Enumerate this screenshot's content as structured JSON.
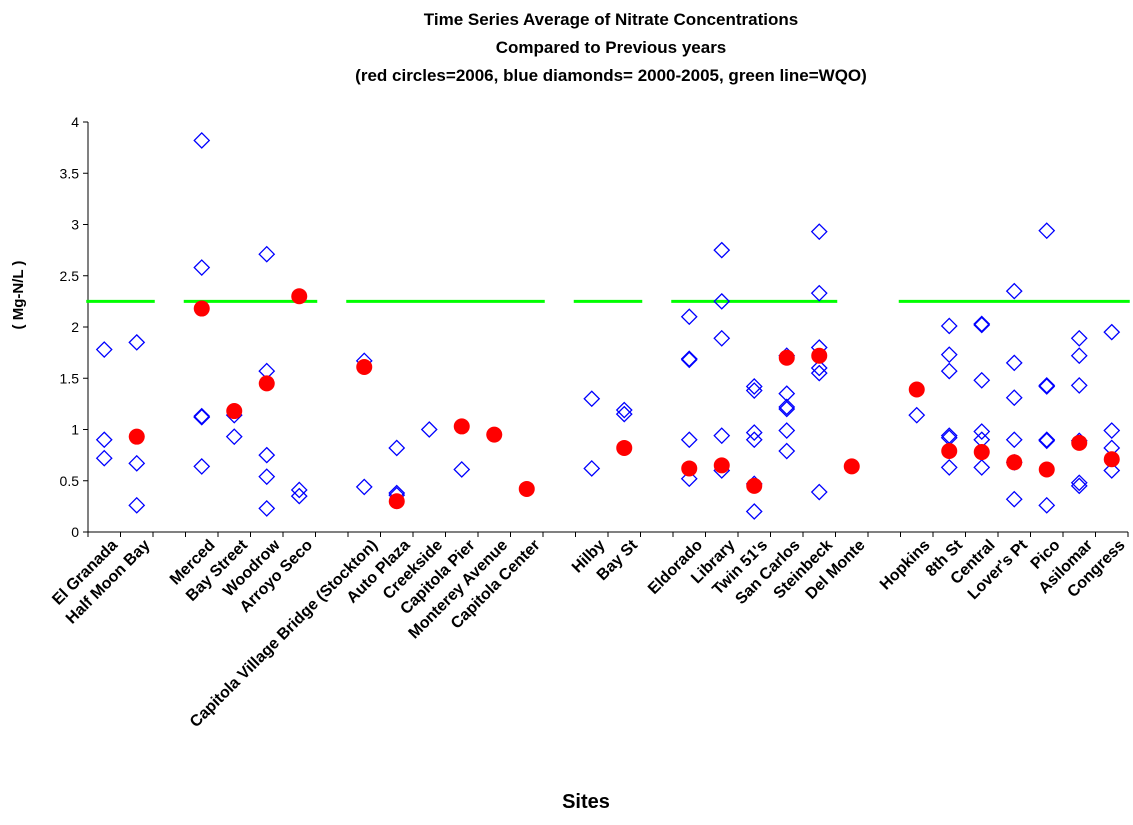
{
  "chart_data": {
    "type": "scatter",
    "title_lines": [
      "Time Series Average of Nitrate Concentrations",
      "Compared to Previous years",
      "(red circles=2006, blue diamonds= 2000-2005, green line=WQO)"
    ],
    "xlabel": "Sites",
    "ylabel": "( Mg-N/L )",
    "ylim": [
      0,
      4
    ],
    "yticks": [
      "0",
      "0.5",
      "1",
      "1.5",
      "2",
      "2.5",
      "3",
      "3.5",
      "4"
    ],
    "grid": false,
    "legend": "none",
    "colors": {
      "series_2006": "#ff0000",
      "series_prev": "#0000ff",
      "wqo": "#00ff00",
      "axis": "#000000"
    },
    "categories": [
      "El Granada",
      "Half Moon Bay",
      "",
      "Merced",
      "Bay Street",
      "Woodrow",
      "Arroyo Seco",
      "",
      "Capitola Village Bridge (Stockton)",
      "Auto Plaza",
      "Creekside",
      "Capitola Pier",
      "Monterey Avenue",
      "Capitola Center",
      "",
      "Hilby",
      "Bay St",
      "",
      "Eldorado",
      "Library",
      "Twin 51's",
      "San Carlos",
      "Steinbeck",
      "Del Monte",
      "",
      "Hopkins",
      "8th St",
      "Central",
      "Lover's Pt",
      "Pico",
      "Asilomar",
      "Congress"
    ],
    "series": [
      {
        "name": "2006",
        "marker": "circle",
        "points": [
          {
            "x": 1,
            "y": 0.93
          },
          {
            "x": 3,
            "y": 2.18
          },
          {
            "x": 4,
            "y": 1.18
          },
          {
            "x": 5,
            "y": 1.45
          },
          {
            "x": 6,
            "y": 2.3
          },
          {
            "x": 8,
            "y": 1.61
          },
          {
            "x": 9,
            "y": 0.3
          },
          {
            "x": 11,
            "y": 1.03
          },
          {
            "x": 12,
            "y": 0.95
          },
          {
            "x": 13,
            "y": 0.42
          },
          {
            "x": 16,
            "y": 0.82
          },
          {
            "x": 18,
            "y": 0.62
          },
          {
            "x": 19,
            "y": 0.65
          },
          {
            "x": 20,
            "y": 0.45
          },
          {
            "x": 21,
            "y": 1.7
          },
          {
            "x": 22,
            "y": 1.72
          },
          {
            "x": 23,
            "y": 0.64
          },
          {
            "x": 25,
            "y": 1.39
          },
          {
            "x": 26,
            "y": 0.79
          },
          {
            "x": 27,
            "y": 0.78
          },
          {
            "x": 28,
            "y": 0.68
          },
          {
            "x": 29,
            "y": 0.61
          },
          {
            "x": 30,
            "y": 0.87
          },
          {
            "x": 31,
            "y": 0.71
          }
        ]
      },
      {
        "name": "2000-2005",
        "marker": "diamond",
        "points": [
          {
            "x": 0,
            "y": 1.78
          },
          {
            "x": 0,
            "y": 0.9
          },
          {
            "x": 0,
            "y": 0.72
          },
          {
            "x": 1,
            "y": 1.85
          },
          {
            "x": 1,
            "y": 0.67
          },
          {
            "x": 1,
            "y": 0.26
          },
          {
            "x": 3,
            "y": 3.82
          },
          {
            "x": 3,
            "y": 2.58
          },
          {
            "x": 3,
            "y": 1.12
          },
          {
            "x": 3,
            "y": 1.13
          },
          {
            "x": 3,
            "y": 0.64
          },
          {
            "x": 4,
            "y": 1.14
          },
          {
            "x": 4,
            "y": 0.93
          },
          {
            "x": 5,
            "y": 2.71
          },
          {
            "x": 5,
            "y": 1.57
          },
          {
            "x": 5,
            "y": 0.75
          },
          {
            "x": 5,
            "y": 0.54
          },
          {
            "x": 5,
            "y": 0.23
          },
          {
            "x": 6,
            "y": 0.41
          },
          {
            "x": 6,
            "y": 0.35
          },
          {
            "x": 8,
            "y": 1.67
          },
          {
            "x": 8,
            "y": 0.44
          },
          {
            "x": 9,
            "y": 0.82
          },
          {
            "x": 9,
            "y": 0.38
          },
          {
            "x": 9,
            "y": 0.36
          },
          {
            "x": 10,
            "y": 1.0
          },
          {
            "x": 11,
            "y": 0.61
          },
          {
            "x": 15,
            "y": 1.3
          },
          {
            "x": 15,
            "y": 0.62
          },
          {
            "x": 16,
            "y": 1.19
          },
          {
            "x": 16,
            "y": 1.15
          },
          {
            "x": 18,
            "y": 2.1
          },
          {
            "x": 18,
            "y": 1.69
          },
          {
            "x": 18,
            "y": 1.68
          },
          {
            "x": 18,
            "y": 0.9
          },
          {
            "x": 18,
            "y": 0.52
          },
          {
            "x": 19,
            "y": 2.75
          },
          {
            "x": 19,
            "y": 2.25
          },
          {
            "x": 19,
            "y": 1.89
          },
          {
            "x": 19,
            "y": 0.94
          },
          {
            "x": 19,
            "y": 0.6
          },
          {
            "x": 20,
            "y": 1.42
          },
          {
            "x": 20,
            "y": 1.38
          },
          {
            "x": 20,
            "y": 0.97
          },
          {
            "x": 20,
            "y": 0.9
          },
          {
            "x": 20,
            "y": 0.47
          },
          {
            "x": 20,
            "y": 0.2
          },
          {
            "x": 21,
            "y": 1.72
          },
          {
            "x": 21,
            "y": 1.35
          },
          {
            "x": 21,
            "y": 1.22
          },
          {
            "x": 21,
            "y": 1.2
          },
          {
            "x": 21,
            "y": 0.99
          },
          {
            "x": 21,
            "y": 0.79
          },
          {
            "x": 22,
            "y": 2.93
          },
          {
            "x": 22,
            "y": 2.33
          },
          {
            "x": 22,
            "y": 1.8
          },
          {
            "x": 22,
            "y": 1.6
          },
          {
            "x": 22,
            "y": 1.55
          },
          {
            "x": 22,
            "y": 0.39
          },
          {
            "x": 25,
            "y": 1.14
          },
          {
            "x": 26,
            "y": 2.01
          },
          {
            "x": 26,
            "y": 1.73
          },
          {
            "x": 26,
            "y": 1.57
          },
          {
            "x": 26,
            "y": 0.94
          },
          {
            "x": 26,
            "y": 0.92
          },
          {
            "x": 26,
            "y": 0.63
          },
          {
            "x": 27,
            "y": 2.03
          },
          {
            "x": 27,
            "y": 2.02
          },
          {
            "x": 27,
            "y": 1.48
          },
          {
            "x": 27,
            "y": 0.98
          },
          {
            "x": 27,
            "y": 0.9
          },
          {
            "x": 27,
            "y": 0.63
          },
          {
            "x": 28,
            "y": 2.35
          },
          {
            "x": 28,
            "y": 1.65
          },
          {
            "x": 28,
            "y": 1.31
          },
          {
            "x": 28,
            "y": 0.9
          },
          {
            "x": 28,
            "y": 0.68
          },
          {
            "x": 28,
            "y": 0.32
          },
          {
            "x": 29,
            "y": 2.94
          },
          {
            "x": 29,
            "y": 1.43
          },
          {
            "x": 29,
            "y": 1.42
          },
          {
            "x": 29,
            "y": 0.9
          },
          {
            "x": 29,
            "y": 0.89
          },
          {
            "x": 29,
            "y": 0.26
          },
          {
            "x": 30,
            "y": 1.89
          },
          {
            "x": 30,
            "y": 1.72
          },
          {
            "x": 30,
            "y": 1.43
          },
          {
            "x": 30,
            "y": 0.89
          },
          {
            "x": 30,
            "y": 0.48
          },
          {
            "x": 30,
            "y": 0.45
          },
          {
            "x": 31,
            "y": 1.95
          },
          {
            "x": 31,
            "y": 0.99
          },
          {
            "x": 31,
            "y": 0.82
          },
          {
            "x": 31,
            "y": 0.6
          }
        ]
      },
      {
        "name": "WQO",
        "type": "line",
        "value": 2.25,
        "segments": [
          [
            0,
            1
          ],
          [
            3,
            6
          ],
          [
            8,
            13
          ],
          [
            15,
            16
          ],
          [
            18,
            22
          ],
          [
            25,
            31
          ]
        ]
      }
    ]
  }
}
